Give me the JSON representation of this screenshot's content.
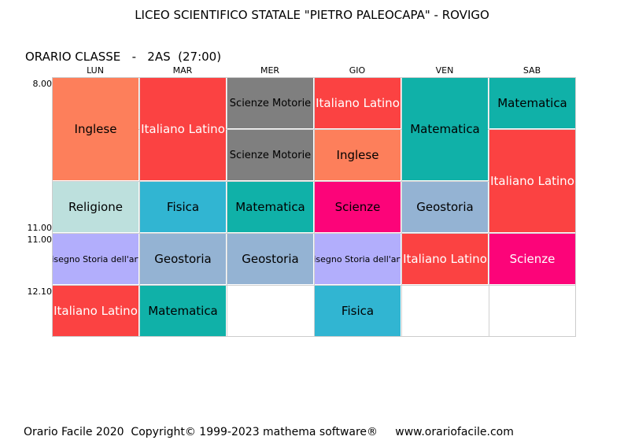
{
  "header": {
    "title": "LICEO SCIENTIFICO STATALE \"PIETRO PALEOCAPA\" - ROVIGO",
    "subtitle": "ORARIO CLASSE   -   2AS  (27:00)"
  },
  "days": [
    "LUN",
    "MAR",
    "MER",
    "GIO",
    "VEN",
    "SAB"
  ],
  "times": [
    "8.00",
    "11.00",
    "11.00",
    "12.10"
  ],
  "colors": {
    "orange": "#fd7f5b",
    "red": "#fb4242",
    "gray": "#7f7f7f",
    "teal": "#10b1a8",
    "lightteal": "#bde0dd",
    "sky": "#31b5d2",
    "magenta": "#fc0479",
    "bluegray": "#94b3d3",
    "lavender": "#b2aefc"
  },
  "cells": [
    {
      "day": 0,
      "row": 0,
      "span": 2,
      "label": "Inglese",
      "color": "#fd7f5b",
      "text": "#000000"
    },
    {
      "day": 0,
      "row": 2,
      "span": 1,
      "label": "Religione",
      "color": "#bde0dd",
      "text": "#000000"
    },
    {
      "day": 0,
      "row": 3,
      "span": 1,
      "label": "Disegno Storia dell'arte",
      "color": "#b2aefc",
      "text": "#000000",
      "size": "small"
    },
    {
      "day": 0,
      "row": 4,
      "span": 1,
      "label": "Italiano Latino",
      "color": "#fb4242",
      "text": "#ffffff"
    },
    {
      "day": 1,
      "row": 0,
      "span": 2,
      "label": "Italiano Latino",
      "color": "#fb4242",
      "text": "#ffffff"
    },
    {
      "day": 1,
      "row": 2,
      "span": 1,
      "label": "Fisica",
      "color": "#31b5d2",
      "text": "#000000"
    },
    {
      "day": 1,
      "row": 3,
      "span": 1,
      "label": "Geostoria",
      "color": "#94b3d3",
      "text": "#000000"
    },
    {
      "day": 1,
      "row": 4,
      "span": 1,
      "label": "Matematica",
      "color": "#10b1a8",
      "text": "#000000"
    },
    {
      "day": 2,
      "row": 0,
      "span": 1,
      "label": "Scienze   Motorie",
      "color": "#7f7f7f",
      "text": "#000000",
      "size": "mid"
    },
    {
      "day": 2,
      "row": 1,
      "span": 1,
      "label": "Scienze   Motorie",
      "color": "#7f7f7f",
      "text": "#000000",
      "size": "mid"
    },
    {
      "day": 2,
      "row": 2,
      "span": 1,
      "label": "Matematica",
      "color": "#10b1a8",
      "text": "#000000"
    },
    {
      "day": 2,
      "row": 3,
      "span": 1,
      "label": "Geostoria",
      "color": "#94b3d3",
      "text": "#000000"
    },
    {
      "day": 3,
      "row": 0,
      "span": 1,
      "label": "Italiano Latino",
      "color": "#fb4242",
      "text": "#ffffff"
    },
    {
      "day": 3,
      "row": 1,
      "span": 1,
      "label": "Inglese",
      "color": "#fd7f5b",
      "text": "#000000"
    },
    {
      "day": 3,
      "row": 2,
      "span": 1,
      "label": "Scienze",
      "color": "#fc0479",
      "text": "#000000"
    },
    {
      "day": 3,
      "row": 3,
      "span": 1,
      "label": "Disegno Storia dell'arte",
      "color": "#b2aefc",
      "text": "#000000",
      "size": "small"
    },
    {
      "day": 3,
      "row": 4,
      "span": 1,
      "label": "Fisica",
      "color": "#31b5d2",
      "text": "#000000"
    },
    {
      "day": 4,
      "row": 0,
      "span": 2,
      "label": "Matematica",
      "color": "#10b1a8",
      "text": "#000000"
    },
    {
      "day": 4,
      "row": 2,
      "span": 1,
      "label": "Geostoria",
      "color": "#94b3d3",
      "text": "#000000"
    },
    {
      "day": 4,
      "row": 3,
      "span": 1,
      "label": "Italiano Latino",
      "color": "#fb4242",
      "text": "#ffffff"
    },
    {
      "day": 5,
      "row": 0,
      "span": 1,
      "label": "Matematica",
      "color": "#10b1a8",
      "text": "#000000"
    },
    {
      "day": 5,
      "row": 1,
      "span": 2,
      "label": "Italiano Latino",
      "color": "#fb4242",
      "text": "#ffffff"
    },
    {
      "day": 5,
      "row": 3,
      "span": 1,
      "label": "Scienze",
      "color": "#fc0479",
      "text": "#ffffff"
    }
  ],
  "footer": {
    "text": "Orario Facile 2020  Copyright© 1999-2023 mathema software®     www.orariofacile.com"
  }
}
